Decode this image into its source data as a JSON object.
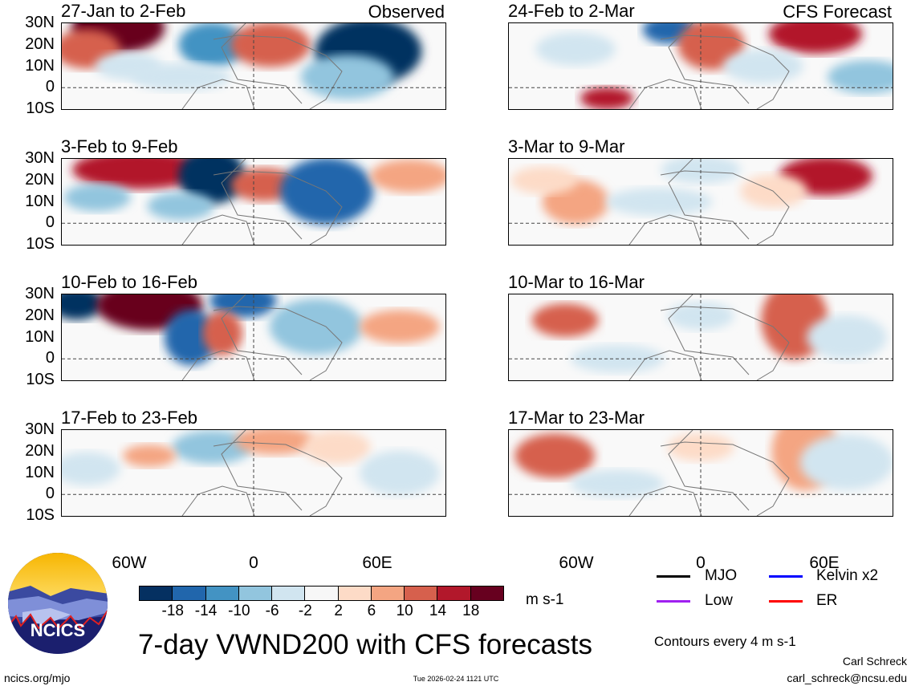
{
  "header": {
    "observed_label": "Observed",
    "forecast_label": "CFS Forecast"
  },
  "panels": {
    "observed": [
      "27-Jan to 2-Feb",
      "3-Feb to 9-Feb",
      "10-Feb to 16-Feb",
      "17-Feb to 23-Feb"
    ],
    "forecast": [
      "24-Feb to 2-Mar",
      "3-Mar to 9-Mar",
      "10-Mar to 16-Mar",
      "17-Mar to 23-Mar"
    ]
  },
  "axes": {
    "lat_ticks": [
      "30N",
      "20N",
      "10N",
      "0",
      "10S"
    ],
    "lon_ticks": [
      "60W",
      "0",
      "60E"
    ]
  },
  "colorbar": {
    "labels": [
      "-18",
      "-14",
      "-10",
      "-6",
      "-2",
      "2",
      "6",
      "10",
      "14",
      "18"
    ],
    "colors": [
      "#053061",
      "#2166ac",
      "#4393c3",
      "#92c5de",
      "#d1e5f0",
      "#f7f7f7",
      "#fddbc7",
      "#f4a582",
      "#d6604d",
      "#b2182b",
      "#67001f"
    ],
    "units": "m s-1"
  },
  "legend": [
    {
      "label": "MJO",
      "color": "#000000"
    },
    {
      "label": "Kelvin x2",
      "color": "#0000ff"
    },
    {
      "label": "Low",
      "color": "#a020f0"
    },
    {
      "label": "ER",
      "color": "#ff0000"
    }
  ],
  "title": "7-day VWND200 with CFS forecasts",
  "contour_note": "Contours every 4 m s-1",
  "logo_text": "NCICS",
  "footer": {
    "url": "ncics.org/mjo",
    "timestamp": "Tue 2026-02-24 1121 UTC",
    "author": "Carl Schreck",
    "email": "carl_schreck@ncsu.edu"
  }
}
